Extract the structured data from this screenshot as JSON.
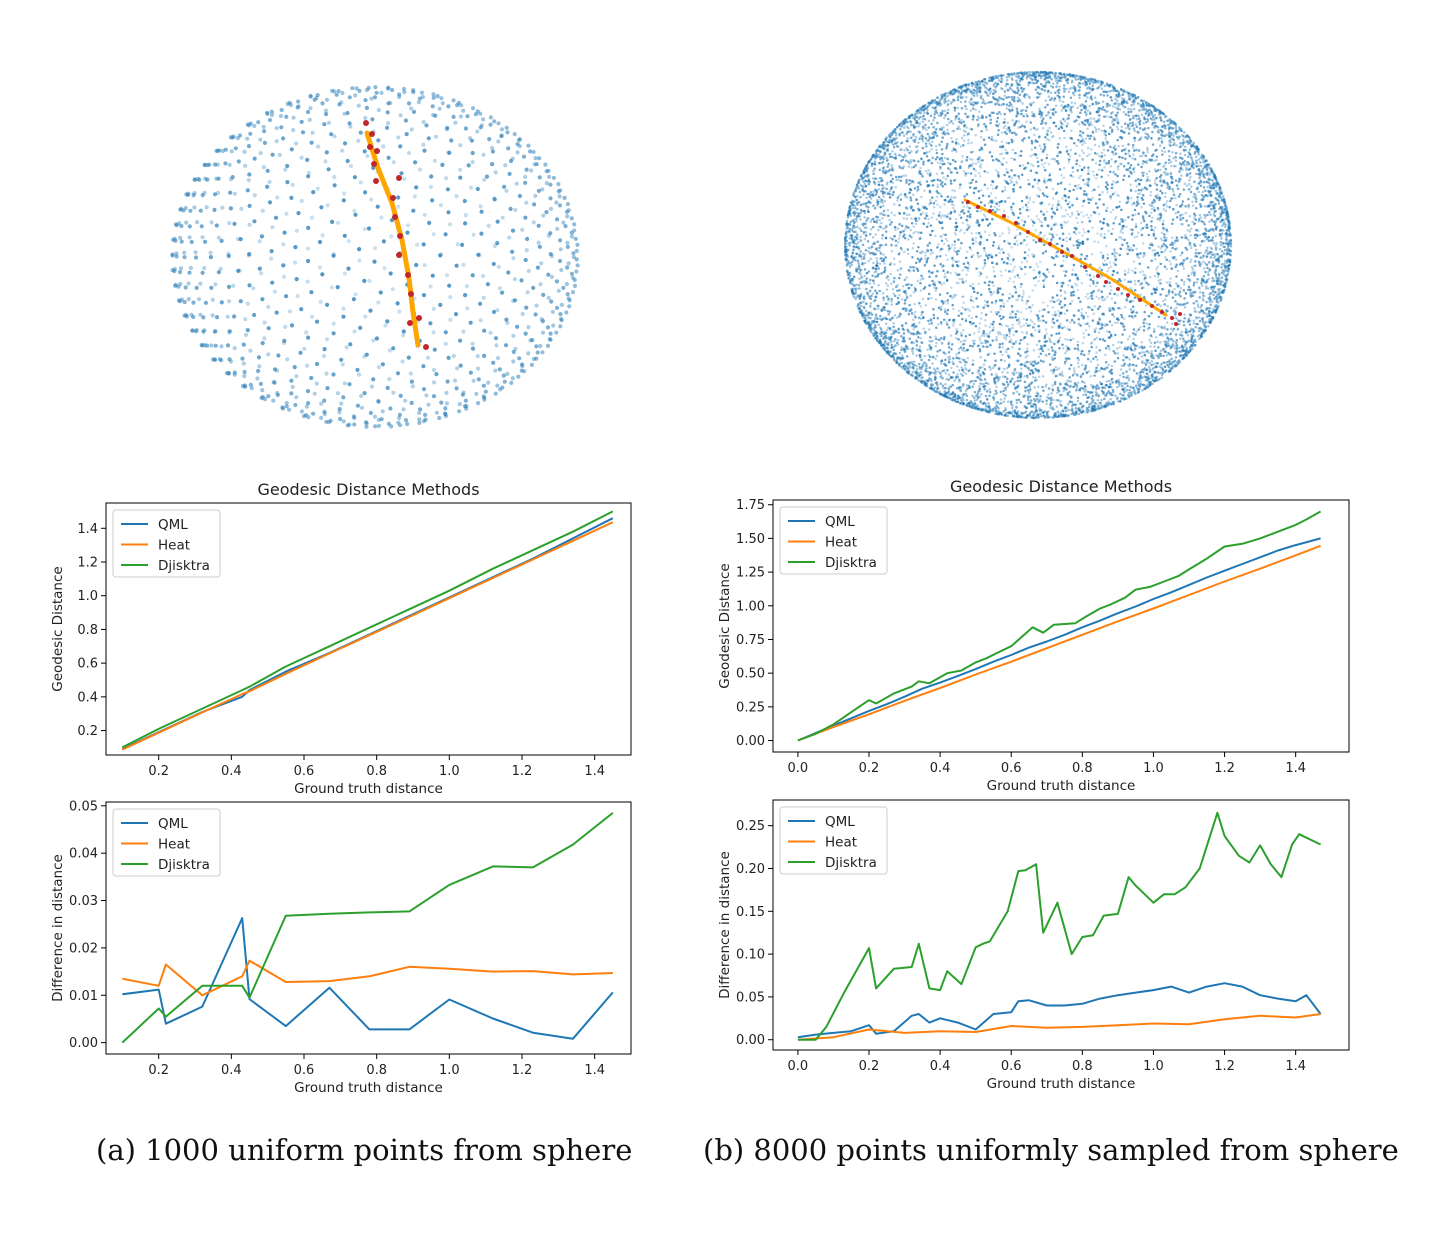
{
  "colors": {
    "qml": "#1f77b4",
    "heat": "#ff7f0e",
    "djisktra": "#2ca02c",
    "sphere_points": "#1f77b4",
    "path_line": "#ffa500",
    "path_points": "#c0272d"
  },
  "captions": {
    "a": "(a) 1000 uniform points from sphere",
    "b": "(b) 8000 points uniformly sampled from sphere"
  },
  "spheres": [
    {
      "id": "sphere-1000",
      "point_count": 1000,
      "layout": "uniform lattice"
    },
    {
      "id": "sphere-8000",
      "point_count": 8000,
      "layout": "uniform random"
    }
  ],
  "chart_data": [
    {
      "id": "a-geodesic",
      "type": "line",
      "title": "Geodesic Distance Methods",
      "xlabel": "Ground truth distance",
      "ylabel": "Geodesic Distance",
      "xlim": [
        0.055,
        1.5
      ],
      "ylim": [
        0.055,
        1.55
      ],
      "xticks": [
        0.2,
        0.4,
        0.6,
        0.8,
        1.0,
        1.2,
        1.4
      ],
      "yticks": [
        0.2,
        0.4,
        0.6,
        0.8,
        1.0,
        1.2,
        1.4
      ],
      "x_decimals": 1,
      "y_decimals": 1,
      "legend": "upper left",
      "series": [
        {
          "name": "QML",
          "key": "qml",
          "x": [
            0.1,
            0.2,
            0.32,
            0.43,
            0.45,
            0.55,
            0.67,
            0.78,
            0.89,
            1.0,
            1.12,
            1.23,
            1.34,
            1.45
          ],
          "y": [
            0.09,
            0.19,
            0.31,
            0.4,
            0.44,
            0.55,
            0.66,
            0.77,
            0.88,
            0.99,
            1.11,
            1.22,
            1.34,
            1.46
          ]
        },
        {
          "name": "Heat",
          "key": "heat",
          "x": [
            0.1,
            0.2,
            0.32,
            0.43,
            0.45,
            0.55,
            0.67,
            0.78,
            0.89,
            1.0,
            1.12,
            1.23,
            1.34,
            1.45
          ],
          "y": [
            0.087,
            0.187,
            0.308,
            0.416,
            0.433,
            0.537,
            0.657,
            0.766,
            0.874,
            0.985,
            1.105,
            1.215,
            1.326,
            1.436
          ]
        },
        {
          "name": "Djisktra",
          "key": "djisktra",
          "x": [
            0.1,
            0.2,
            0.32,
            0.43,
            0.45,
            0.55,
            0.67,
            0.78,
            0.89,
            1.0,
            1.12,
            1.23,
            1.34,
            1.45
          ],
          "y": [
            0.1,
            0.21,
            0.33,
            0.44,
            0.46,
            0.58,
            0.7,
            0.81,
            0.92,
            1.03,
            1.16,
            1.27,
            1.38,
            1.5
          ]
        }
      ]
    },
    {
      "id": "a-difference",
      "type": "line",
      "title": "",
      "xlabel": "Ground truth distance",
      "ylabel": "Difference in distance",
      "xlim": [
        0.055,
        1.5
      ],
      "ylim": [
        -0.0024,
        0.0508
      ],
      "xticks": [
        0.2,
        0.4,
        0.6,
        0.8,
        1.0,
        1.2,
        1.4
      ],
      "yticks": [
        0.0,
        0.01,
        0.02,
        0.03,
        0.04,
        0.05
      ],
      "x_decimals": 1,
      "y_decimals": 2,
      "legend": "upper left",
      "series": [
        {
          "name": "QML",
          "key": "qml",
          "x": [
            0.1,
            0.2,
            0.22,
            0.32,
            0.43,
            0.45,
            0.55,
            0.67,
            0.78,
            0.89,
            1.0,
            1.12,
            1.23,
            1.34,
            1.45
          ],
          "y": [
            0.0102,
            0.0112,
            0.004,
            0.0076,
            0.0263,
            0.0092,
            0.0035,
            0.0116,
            0.0028,
            0.0028,
            0.0091,
            0.0051,
            0.0021,
            0.0008,
            0.0106
          ]
        },
        {
          "name": "Heat",
          "key": "heat",
          "x": [
            0.1,
            0.2,
            0.22,
            0.32,
            0.43,
            0.45,
            0.55,
            0.67,
            0.78,
            0.89,
            1.0,
            1.12,
            1.23,
            1.34,
            1.45
          ],
          "y": [
            0.0135,
            0.012,
            0.0165,
            0.01,
            0.014,
            0.0173,
            0.0128,
            0.013,
            0.014,
            0.016,
            0.0156,
            0.015,
            0.0151,
            0.0144,
            0.0147
          ]
        },
        {
          "name": "Djisktra",
          "key": "djisktra",
          "x": [
            0.1,
            0.2,
            0.22,
            0.32,
            0.43,
            0.45,
            0.55,
            0.67,
            0.78,
            0.89,
            1.0,
            1.12,
            1.23,
            1.34,
            1.45
          ],
          "y": [
            0.0,
            0.0072,
            0.0055,
            0.012,
            0.012,
            0.0095,
            0.0268,
            0.0272,
            0.0275,
            0.0277,
            0.0333,
            0.0372,
            0.037,
            0.0418,
            0.0485
          ]
        }
      ]
    },
    {
      "id": "b-geodesic",
      "type": "line",
      "title": "Geodesic Distance Methods",
      "xlabel": "Ground truth distance",
      "ylabel": "Geodesic Distance",
      "xlim": [
        -0.07,
        1.55
      ],
      "ylim": [
        -0.085,
        1.785
      ],
      "xticks": [
        0.0,
        0.2,
        0.4,
        0.6,
        0.8,
        1.0,
        1.2,
        1.4
      ],
      "yticks": [
        0.0,
        0.25,
        0.5,
        0.75,
        1.0,
        1.25,
        1.5,
        1.75
      ],
      "x_decimals": 1,
      "y_decimals": 2,
      "legend": "upper left",
      "series": [
        {
          "name": "QML",
          "key": "qml",
          "x": [
            0.0,
            0.05,
            0.1,
            0.15,
            0.2,
            0.25,
            0.3,
            0.35,
            0.4,
            0.45,
            0.5,
            0.55,
            0.6,
            0.65,
            0.7,
            0.75,
            0.8,
            0.85,
            0.9,
            0.95,
            1.0,
            1.05,
            1.1,
            1.15,
            1.2,
            1.25,
            1.3,
            1.35,
            1.4,
            1.47
          ],
          "y": [
            0.0,
            0.055,
            0.11,
            0.165,
            0.22,
            0.27,
            0.325,
            0.385,
            0.43,
            0.48,
            0.53,
            0.585,
            0.635,
            0.69,
            0.735,
            0.785,
            0.84,
            0.89,
            0.945,
            0.995,
            1.05,
            1.1,
            1.155,
            1.21,
            1.26,
            1.31,
            1.36,
            1.41,
            1.45,
            1.5
          ]
        },
        {
          "name": "Heat",
          "key": "heat",
          "x": [
            0.0,
            0.1,
            0.2,
            0.3,
            0.4,
            0.5,
            0.6,
            0.7,
            0.8,
            0.9,
            1.0,
            1.1,
            1.2,
            1.3,
            1.4,
            1.47
          ],
          "y": [
            0.0,
            0.1,
            0.195,
            0.295,
            0.39,
            0.49,
            0.585,
            0.685,
            0.785,
            0.885,
            0.98,
            1.08,
            1.18,
            1.275,
            1.375,
            1.445
          ]
        },
        {
          "name": "Djisktra",
          "key": "djisktra",
          "x": [
            0.0,
            0.05,
            0.1,
            0.15,
            0.2,
            0.22,
            0.27,
            0.32,
            0.34,
            0.37,
            0.4,
            0.42,
            0.46,
            0.5,
            0.53,
            0.56,
            0.6,
            0.63,
            0.66,
            0.69,
            0.72,
            0.78,
            0.81,
            0.85,
            0.88,
            0.92,
            0.95,
            0.99,
            1.03,
            1.07,
            1.1,
            1.15,
            1.2,
            1.25,
            1.3,
            1.35,
            1.4,
            1.43,
            1.47
          ],
          "y": [
            0.0,
            0.05,
            0.12,
            0.21,
            0.3,
            0.275,
            0.35,
            0.4,
            0.44,
            0.425,
            0.47,
            0.5,
            0.52,
            0.58,
            0.61,
            0.65,
            0.7,
            0.77,
            0.84,
            0.8,
            0.86,
            0.87,
            0.92,
            0.98,
            1.01,
            1.06,
            1.12,
            1.14,
            1.18,
            1.22,
            1.27,
            1.35,
            1.44,
            1.46,
            1.5,
            1.55,
            1.6,
            1.64,
            1.7
          ]
        }
      ]
    },
    {
      "id": "b-difference",
      "type": "line",
      "title": "",
      "xlabel": "Ground truth distance",
      "ylabel": "Difference in distance",
      "xlim": [
        -0.07,
        1.55
      ],
      "ylim": [
        -0.012,
        0.28
      ],
      "xticks": [
        0.0,
        0.2,
        0.4,
        0.6,
        0.8,
        1.0,
        1.2,
        1.4
      ],
      "yticks": [
        0.0,
        0.05,
        0.1,
        0.15,
        0.2,
        0.25
      ],
      "x_decimals": 1,
      "y_decimals": 2,
      "legend": "upper left",
      "series": [
        {
          "name": "QML",
          "key": "qml",
          "x": [
            0.0,
            0.05,
            0.1,
            0.15,
            0.2,
            0.22,
            0.27,
            0.32,
            0.34,
            0.37,
            0.4,
            0.45,
            0.5,
            0.55,
            0.6,
            0.62,
            0.65,
            0.7,
            0.75,
            0.8,
            0.85,
            0.9,
            0.95,
            1.0,
            1.05,
            1.1,
            1.15,
            1.2,
            1.25,
            1.3,
            1.35,
            1.4,
            1.43,
            1.47
          ],
          "y": [
            0.003,
            0.006,
            0.008,
            0.01,
            0.017,
            0.007,
            0.01,
            0.028,
            0.03,
            0.02,
            0.025,
            0.02,
            0.012,
            0.03,
            0.032,
            0.045,
            0.046,
            0.04,
            0.04,
            0.042,
            0.048,
            0.052,
            0.055,
            0.058,
            0.062,
            0.055,
            0.062,
            0.066,
            0.062,
            0.052,
            0.048,
            0.045,
            0.052,
            0.03
          ]
        },
        {
          "name": "Heat",
          "key": "heat",
          "x": [
            0.0,
            0.1,
            0.2,
            0.3,
            0.4,
            0.5,
            0.6,
            0.7,
            0.8,
            0.9,
            1.0,
            1.1,
            1.2,
            1.3,
            1.4,
            1.47
          ],
          "y": [
            0.0,
            0.003,
            0.012,
            0.008,
            0.01,
            0.009,
            0.016,
            0.014,
            0.015,
            0.017,
            0.019,
            0.018,
            0.024,
            0.028,
            0.026,
            0.03
          ]
        },
        {
          "name": "Djisktra",
          "key": "djisktra",
          "x": [
            0.0,
            0.05,
            0.08,
            0.13,
            0.2,
            0.22,
            0.27,
            0.32,
            0.34,
            0.37,
            0.4,
            0.42,
            0.46,
            0.5,
            0.52,
            0.54,
            0.59,
            0.62,
            0.64,
            0.67,
            0.69,
            0.73,
            0.77,
            0.8,
            0.83,
            0.86,
            0.9,
            0.93,
            0.95,
            1.0,
            1.03,
            1.06,
            1.09,
            1.13,
            1.18,
            1.2,
            1.24,
            1.27,
            1.3,
            1.33,
            1.36,
            1.39,
            1.41,
            1.47
          ],
          "y": [
            0.0,
            0.0,
            0.015,
            0.055,
            0.107,
            0.06,
            0.083,
            0.085,
            0.112,
            0.06,
            0.058,
            0.08,
            0.065,
            0.108,
            0.112,
            0.115,
            0.15,
            0.197,
            0.198,
            0.205,
            0.125,
            0.16,
            0.1,
            0.12,
            0.122,
            0.145,
            0.147,
            0.19,
            0.18,
            0.16,
            0.17,
            0.17,
            0.178,
            0.2,
            0.265,
            0.238,
            0.215,
            0.207,
            0.227,
            0.205,
            0.19,
            0.228,
            0.24,
            0.228
          ]
        }
      ]
    }
  ]
}
